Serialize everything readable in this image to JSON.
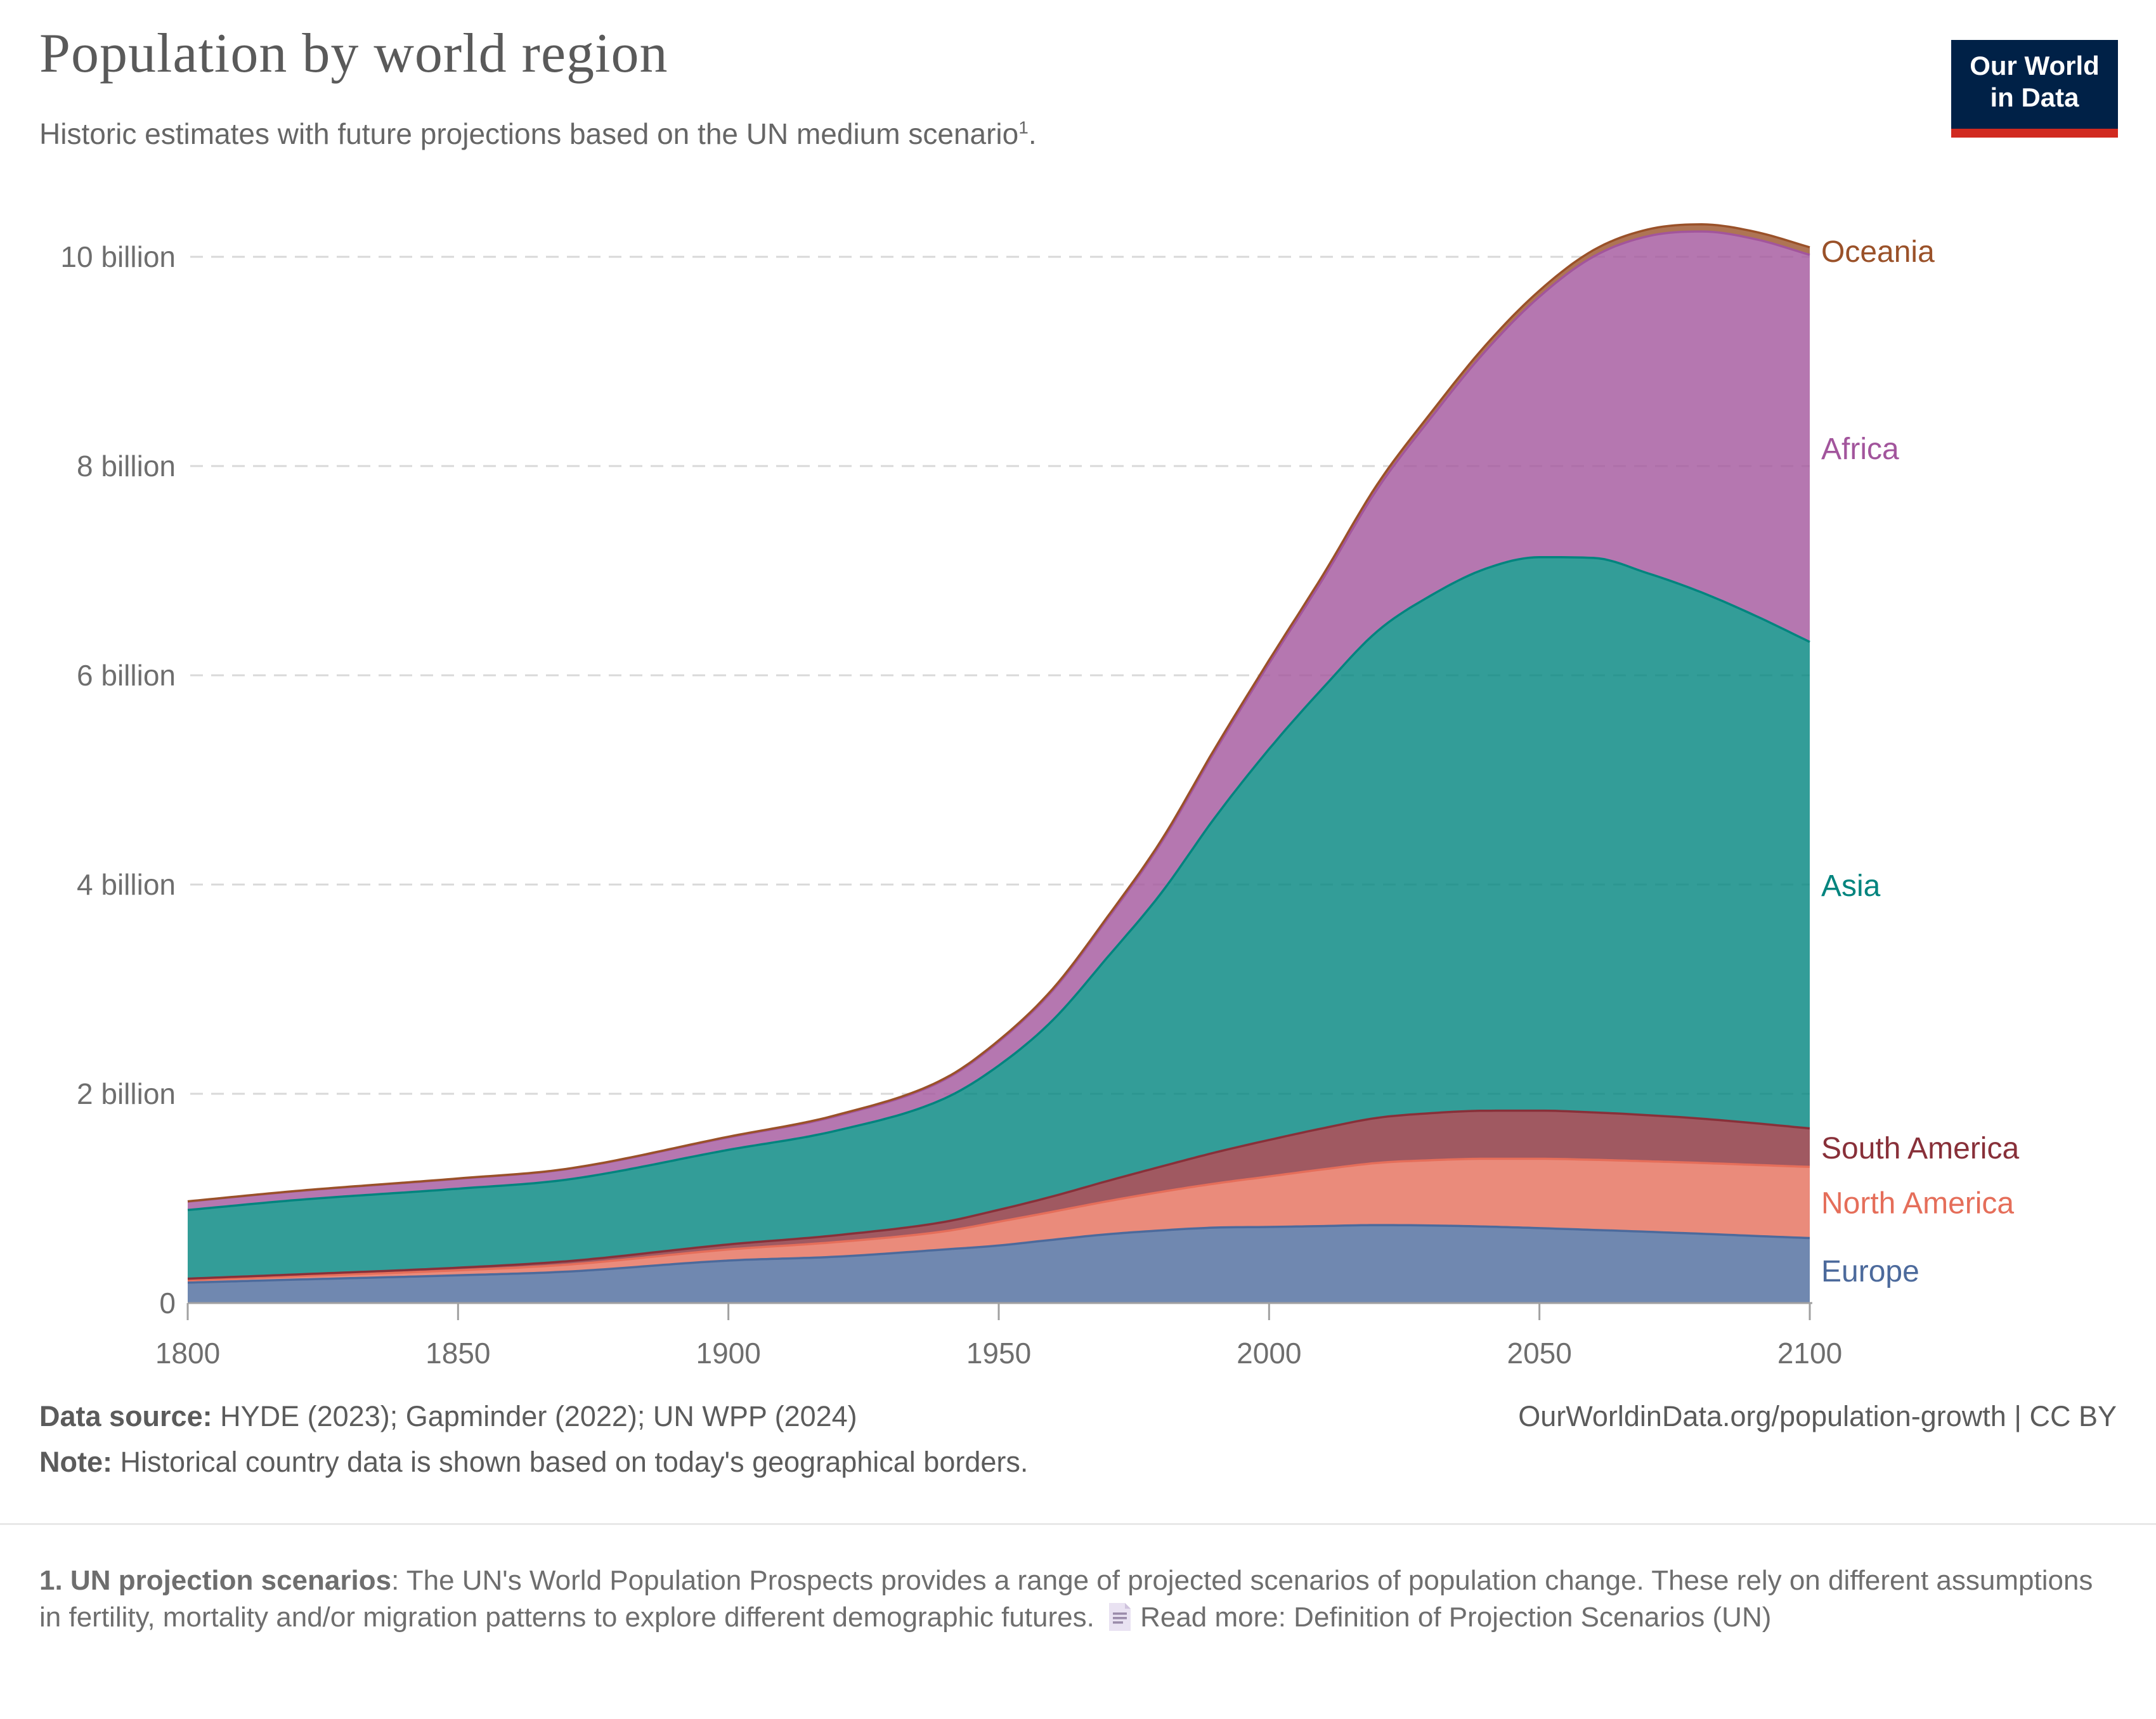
{
  "header": {
    "title": "Population by world region",
    "subtitle": "Historic estimates with future projections based on the UN medium scenario",
    "subtitle_footnote_marker": "1",
    "subtitle_period": ".",
    "logo_line1": "Our World",
    "logo_line2": "in Data",
    "logo_bg_color": "#002147",
    "logo_bar_color": "#d12a20"
  },
  "footer": {
    "datasource_label": "Data source:",
    "datasource_value": " HYDE (2023); Gapminder (2022); UN WPP (2024)",
    "attribution": "OurWorldinData.org/population-growth | CC BY",
    "note_label": "Note:",
    "note_value": " Historical country data is shown based on today's geographical borders."
  },
  "footnote": {
    "bold_label": "1. UN projection scenarios",
    "body": ": The UN's World Population Prospects provides a range of projected scenarios of population change. These rely on different assumptions in fertility, mortality and/or migration patterns to explore different demographic futures.",
    "read_more": "Read more: Definition of Projection Scenarios (UN)",
    "icon": "document-icon",
    "icon_color": "#e9e2f2",
    "icon_line_color": "#9b8cab"
  },
  "chart_data": {
    "type": "area",
    "stacked": true,
    "title": "Population by world region",
    "unit": "people",
    "x": [
      1800,
      1820,
      1850,
      1870,
      1900,
      1920,
      1940,
      1950,
      1960,
      1970,
      1980,
      1990,
      2000,
      2010,
      2020,
      2030,
      2040,
      2050,
      2060,
      2070,
      2080,
      2090,
      2100
    ],
    "series": [
      {
        "name": "Europe",
        "color": "#4C6A9C",
        "values": [
          0.195,
          0.224,
          0.265,
          0.3,
          0.406,
          0.443,
          0.512,
          0.55,
          0.605,
          0.657,
          0.694,
          0.721,
          0.727,
          0.736,
          0.745,
          0.741,
          0.731,
          0.716,
          0.699,
          0.681,
          0.662,
          0.641,
          0.621
        ]
      },
      {
        "name": "North America",
        "color": "#E56E5A",
        "values": [
          0.024,
          0.032,
          0.048,
          0.066,
          0.106,
          0.14,
          0.174,
          0.227,
          0.268,
          0.315,
          0.368,
          0.421,
          0.483,
          0.542,
          0.594,
          0.624,
          0.648,
          0.663,
          0.67,
          0.674,
          0.677,
          0.679,
          0.68
        ]
      },
      {
        "name": "South America",
        "color": "#883039",
        "values": [
          0.014,
          0.017,
          0.025,
          0.033,
          0.048,
          0.065,
          0.09,
          0.114,
          0.147,
          0.193,
          0.242,
          0.297,
          0.349,
          0.393,
          0.431,
          0.45,
          0.459,
          0.46,
          0.453,
          0.441,
          0.423,
          0.398,
          0.368
        ]
      },
      {
        "name": "Asia",
        "color": "#00847E",
        "values": [
          0.656,
          0.711,
          0.755,
          0.78,
          0.904,
          1.0,
          1.18,
          1.379,
          1.684,
          2.133,
          2.611,
          3.202,
          3.736,
          4.21,
          4.65,
          4.95,
          5.18,
          5.29,
          5.3,
          5.18,
          5.03,
          4.85,
          4.65
        ]
      },
      {
        "name": "Africa",
        "color": "#A2559C",
        "values": [
          0.081,
          0.085,
          0.095,
          0.1,
          0.12,
          0.14,
          0.18,
          0.228,
          0.284,
          0.366,
          0.48,
          0.635,
          0.819,
          1.044,
          1.36,
          1.7,
          2.08,
          2.49,
          2.88,
          3.22,
          3.45,
          3.6,
          3.7
        ]
      },
      {
        "name": "Oceania",
        "color": "#9A5129",
        "values": [
          0.002,
          0.002,
          0.003,
          0.003,
          0.006,
          0.009,
          0.011,
          0.013,
          0.016,
          0.02,
          0.023,
          0.027,
          0.031,
          0.037,
          0.044,
          0.049,
          0.054,
          0.058,
          0.062,
          0.065,
          0.068,
          0.07,
          0.072
        ]
      }
    ],
    "yticks": [
      {
        "value": 0,
        "label": "0"
      },
      {
        "value": 2,
        "label": "2 billion"
      },
      {
        "value": 4,
        "label": "4 billion"
      },
      {
        "value": 6,
        "label": "6 billion"
      },
      {
        "value": 8,
        "label": "8 billion"
      },
      {
        "value": 10,
        "label": "10 billion"
      }
    ],
    "xticks": [
      1800,
      1850,
      1900,
      1950,
      2000,
      2050,
      2100
    ],
    "xlim": [
      1800,
      2100
    ],
    "ylim": [
      0,
      10.5
    ],
    "grid": "dashed-horizontal",
    "fill_opacity": 0.8,
    "legend_position": "right-edge-labels",
    "axis_color": "#a1a1a1",
    "grid_color": "#d9d9d9",
    "tick_label_color": "#6e6e6e"
  }
}
